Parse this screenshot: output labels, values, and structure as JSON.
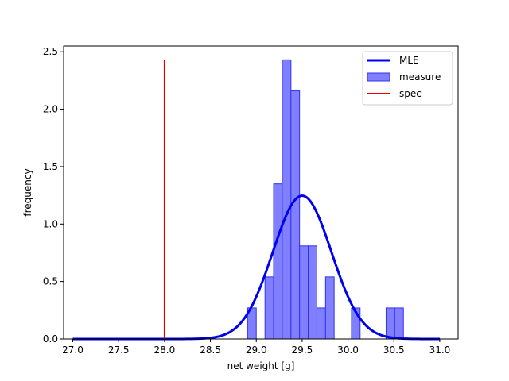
{
  "chart_data": {
    "type": "histogram",
    "xlabel": "net weight [g]",
    "ylabel": "frequency",
    "xlim": [
      26.9,
      31.2
    ],
    "ylim": [
      0,
      2.55
    ],
    "xticks": [
      27.0,
      27.5,
      28.0,
      28.5,
      29.0,
      29.5,
      30.0,
      30.5,
      31.0
    ],
    "xtick_labels": [
      "27.0",
      "27.5",
      "28.0",
      "28.5",
      "29.0",
      "29.5",
      "30.0",
      "30.5",
      "31.0"
    ],
    "yticks": [
      0.0,
      0.5,
      1.0,
      1.5,
      2.0,
      2.5
    ],
    "ytick_labels": [
      "0.0",
      "0.5",
      "1.0",
      "1.5",
      "2.0",
      "2.5"
    ],
    "legend_position": "top-right",
    "histogram": {
      "name": "measure",
      "color": "#7f7fff",
      "edge_color": "#3333ee",
      "bin_width": 0.0944,
      "bins": [
        {
          "x0": 28.905,
          "x1": 29.0,
          "value": 0.27
        },
        {
          "x0": 29.095,
          "x1": 29.189,
          "value": 0.54
        },
        {
          "x0": 29.189,
          "x1": 29.283,
          "value": 1.35
        },
        {
          "x0": 29.283,
          "x1": 29.378,
          "value": 2.43
        },
        {
          "x0": 29.378,
          "x1": 29.472,
          "value": 2.16
        },
        {
          "x0": 29.472,
          "x1": 29.566,
          "value": 0.81
        },
        {
          "x0": 29.566,
          "x1": 29.661,
          "value": 0.81
        },
        {
          "x0": 29.661,
          "x1": 29.755,
          "value": 0.27
        },
        {
          "x0": 29.755,
          "x1": 29.849,
          "value": 0.54
        },
        {
          "x0": 30.038,
          "x1": 30.132,
          "value": 0.27
        },
        {
          "x0": 30.415,
          "x1": 30.509,
          "value": 0.27
        },
        {
          "x0": 30.509,
          "x1": 30.604,
          "value": 0.27
        }
      ]
    },
    "mle": {
      "name": "MLE",
      "color": "#0000ee",
      "distribution": "normal",
      "mean": 29.5,
      "std": 0.32,
      "x_range": [
        27.0,
        31.0
      ]
    },
    "spec": {
      "name": "spec",
      "color": "#ee0000",
      "x": 28.0,
      "y_range": [
        0.0,
        2.43
      ]
    },
    "legend": [
      "MLE",
      "measure",
      "spec"
    ]
  }
}
